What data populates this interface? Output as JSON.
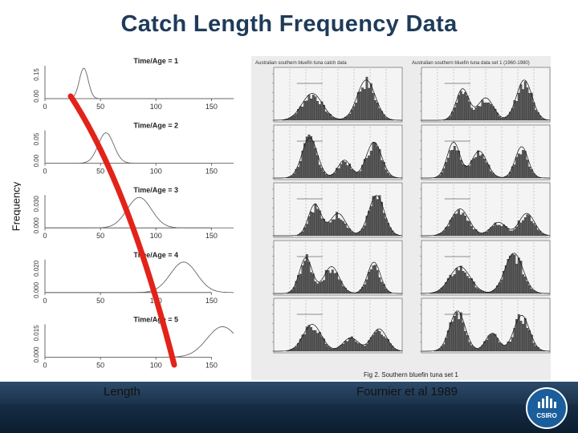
{
  "slide": {
    "title": "Catch Length Frequency Data",
    "y_axis_label": "Frequency",
    "x_axis_label": "Length",
    "citation": "Fournier et al 1989"
  },
  "left_panels": {
    "panel_titles": [
      "Time/Age = 1",
      "Time/Age = 2",
      "Time/Age = 3",
      "Time/Age = 4",
      "Time/Age = 5"
    ],
    "x_ticks": [
      "0",
      "50",
      "100",
      "150"
    ],
    "y_ticks": [
      [
        "0.00",
        "0.15"
      ],
      [
        "0.00",
        "0.05"
      ],
      [
        "0.000",
        "0.030"
      ],
      [
        "0.000",
        "0.020"
      ],
      [
        "0.000",
        "0.015"
      ]
    ],
    "peaks": [
      35,
      55,
      85,
      125,
      160
    ],
    "widths": [
      4,
      7,
      11,
      12,
      14
    ]
  },
  "right_panels": {
    "left_header": "Australian southern bluefin tuna catch data",
    "right_header": "Australian southern bluefin tuna data set 1 (1960-1980)",
    "caption": "Fig 2. Southern bluefin tuna set 1"
  },
  "logo": {
    "text": "CSIRO"
  },
  "colors": {
    "title": "#1f3b5a",
    "trend_arrow": "#e2231a",
    "footer": "#1b324a"
  }
}
